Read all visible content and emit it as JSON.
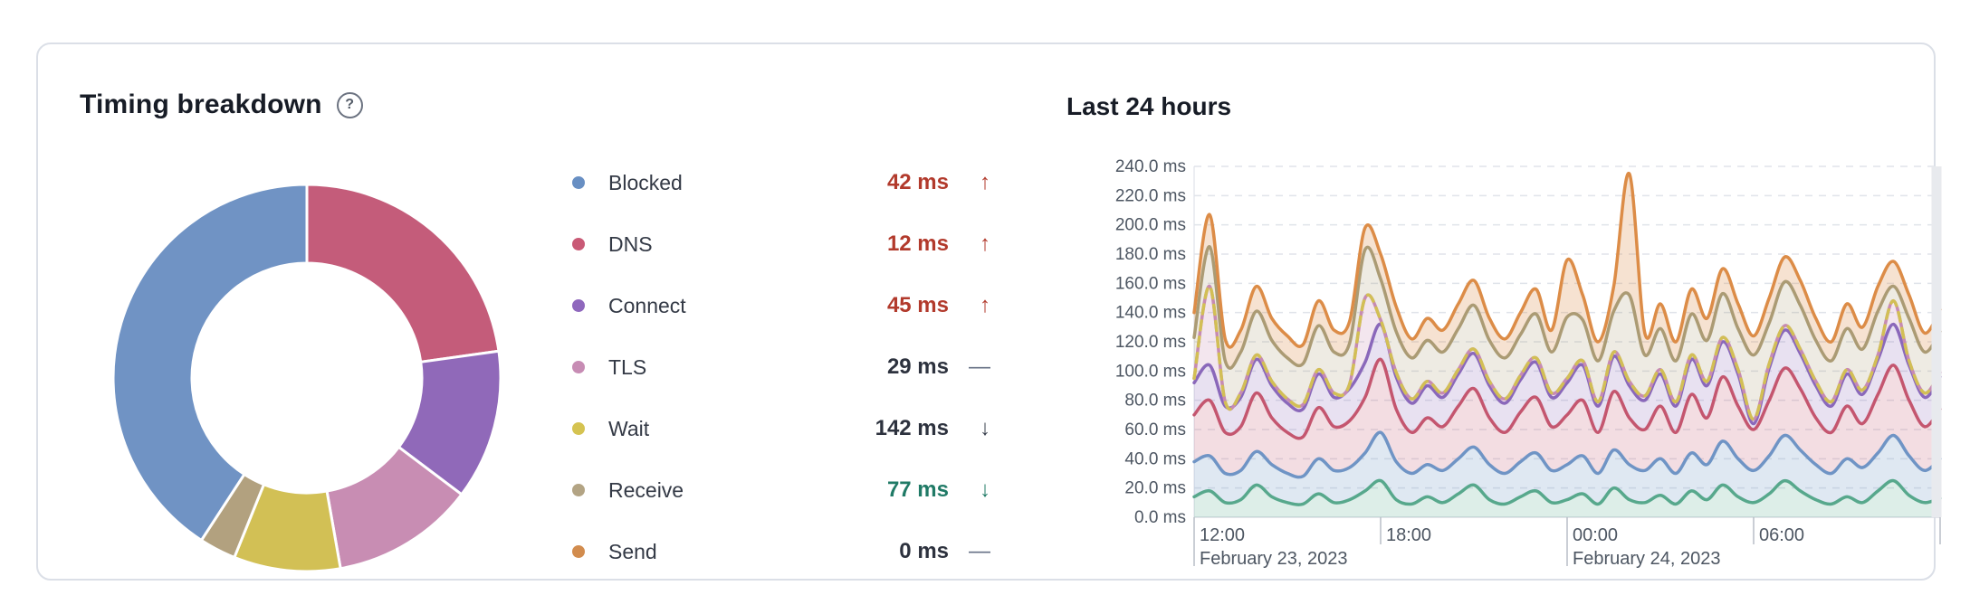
{
  "panel": {
    "title": "Timing breakdown",
    "help_glyph": "?",
    "legend": [
      {
        "label": "Blocked",
        "value": "42 ms",
        "trend_glyph": "↑",
        "dot_color": "#688fc3",
        "value_color": "#b23a2c",
        "glyph_color": "#b23a2c"
      },
      {
        "label": "DNS",
        "value": "12 ms",
        "trend_glyph": "↑",
        "dot_color": "#c95a76",
        "value_color": "#b23a2c",
        "glyph_color": "#b23a2c"
      },
      {
        "label": "Connect",
        "value": "45 ms",
        "trend_glyph": "↑",
        "dot_color": "#8f68bd",
        "value_color": "#b23a2c",
        "glyph_color": "#b23a2c"
      },
      {
        "label": "TLS",
        "value": "29 ms",
        "trend_glyph": "—",
        "dot_color": "#c78cb4",
        "value_color": "#2d323e",
        "glyph_color": "#667085"
      },
      {
        "label": "Wait",
        "value": "142 ms",
        "trend_glyph": "↓",
        "dot_color": "#d5c351",
        "value_color": "#2d323e",
        "glyph_color": "#39404d"
      },
      {
        "label": "Receive",
        "value": "77 ms",
        "trend_glyph": "↓",
        "dot_color": "#b3a484",
        "value_color": "#207a66",
        "glyph_color": "#207a66"
      },
      {
        "label": "Send",
        "value": "0 ms",
        "trend_glyph": "—",
        "dot_color": "#d28c4e",
        "value_color": "#2d323e",
        "glyph_color": "#667085"
      }
    ]
  },
  "chart": {
    "title": "Last 24 hours"
  },
  "chart_data": [
    {
      "type": "pie",
      "title": "Timing breakdown",
      "labels": [
        "Blocked",
        "DNS",
        "Connect",
        "TLS",
        "Wait",
        "Receive",
        "Send"
      ],
      "values_ms": [
        42,
        12,
        45,
        29,
        142,
        77,
        0
      ],
      "donut": true,
      "start": "top",
      "direction": "clockwise",
      "segments_rendered": [
        {
          "color": "#c45c7a",
          "from_deg": 0,
          "to_deg": 82
        },
        {
          "color": "#9069b9",
          "from_deg": 82,
          "to_deg": 127
        },
        {
          "color": "#c88db3",
          "from_deg": 127,
          "to_deg": 170
        },
        {
          "color": "#d2c055",
          "from_deg": 170,
          "to_deg": 202
        },
        {
          "color": "#b2a17f",
          "from_deg": 202,
          "to_deg": 213
        },
        {
          "color": "#7093c4",
          "from_deg": 213,
          "to_deg": 360
        }
      ]
    },
    {
      "type": "area",
      "title": "Last 24 hours",
      "stacked_tops": true,
      "x_hours": {
        "start_label": "12:00",
        "span_hours": 24,
        "points": 49
      },
      "x_ticks": [
        {
          "h": 0,
          "time": "12:00",
          "date": "February 23, 2023",
          "tall": true
        },
        {
          "h": 6,
          "time": "18:00",
          "tall": false
        },
        {
          "h": 12,
          "time": "00:00",
          "date": "February 24, 2023",
          "tall": true
        },
        {
          "h": 18,
          "time": "06:00",
          "tall": false
        },
        {
          "h": 24,
          "time": "",
          "tall": false
        }
      ],
      "y": {
        "min": 0,
        "max": 240,
        "step": 20,
        "unit": "ms"
      },
      "y_tick_labels": [
        "0.0 ms",
        "20.0 ms",
        "40.0 ms",
        "60.0 ms",
        "80.0 ms",
        "100.0 ms",
        "120.0 ms",
        "140.0 ms",
        "160.0 ms",
        "180.0 ms",
        "200.0 ms",
        "220.0 ms",
        "240.0 ms"
      ],
      "grid": {
        "dashed": true,
        "color": "#e0e4ea"
      },
      "now_strip_color": "#e8eaee",
      "series": [
        {
          "name": "teal",
          "line": "#57a88c",
          "fill": "rgba(87,168,140,0.20)",
          "values": [
            14,
            18,
            10,
            12,
            22,
            14,
            10,
            9,
            16,
            10,
            12,
            18,
            25,
            12,
            9,
            14,
            10,
            16,
            22,
            12,
            9,
            14,
            18,
            10,
            12,
            16,
            9,
            20,
            12,
            10,
            15,
            9,
            18,
            12,
            22,
            14,
            10,
            16,
            25,
            18,
            12,
            9,
            14,
            10,
            18,
            25,
            15,
            10,
            13
          ]
        },
        {
          "name": "blue",
          "line": "#6f94c5",
          "fill": "rgba(111,148,197,0.22)",
          "values": [
            38,
            42,
            30,
            32,
            45,
            36,
            30,
            28,
            40,
            32,
            34,
            44,
            58,
            38,
            30,
            36,
            32,
            40,
            48,
            36,
            30,
            38,
            44,
            32,
            36,
            42,
            30,
            46,
            36,
            32,
            40,
            30,
            44,
            36,
            52,
            40,
            32,
            42,
            56,
            46,
            36,
            30,
            40,
            34,
            44,
            56,
            42,
            32,
            40
          ]
        },
        {
          "name": "crimson",
          "line": "#c4566f",
          "fill": "rgba(196,86,111,0.20)",
          "values": [
            70,
            80,
            58,
            62,
            85,
            68,
            58,
            55,
            75,
            62,
            66,
            82,
            108,
            74,
            58,
            68,
            62,
            76,
            88,
            68,
            58,
            72,
            82,
            62,
            70,
            80,
            58,
            86,
            68,
            60,
            76,
            58,
            84,
            68,
            96,
            76,
            60,
            80,
            102,
            88,
            68,
            58,
            76,
            64,
            84,
            104,
            80,
            62,
            74
          ]
        },
        {
          "name": "purple",
          "line": "#8a68ba",
          "fill": "rgba(138,104,186,0.20)",
          "values": [
            92,
            104,
            76,
            82,
            108,
            90,
            78,
            74,
            98,
            82,
            88,
            106,
            132,
            96,
            78,
            90,
            82,
            98,
            112,
            90,
            78,
            94,
            106,
            82,
            92,
            104,
            76,
            110,
            90,
            80,
            98,
            76,
            108,
            90,
            120,
            98,
            64,
            102,
            128,
            112,
            90,
            76,
            98,
            84,
            108,
            132,
            104,
            82,
            96
          ]
        },
        {
          "name": "yellow-dashed",
          "line": "#d2bf55",
          "dash": "10 8",
          "underlay": "#c78bb2",
          "fill": "rgba(199,139,178,0.22)",
          "values": [
            95,
            158,
            79,
            85,
            111,
            93,
            81,
            77,
            101,
            85,
            91,
            150,
            135,
            99,
            81,
            93,
            85,
            101,
            115,
            93,
            81,
            97,
            109,
            85,
            95,
            107,
            79,
            113,
            93,
            83,
            101,
            79,
            111,
            93,
            123,
            101,
            67,
            105,
            131,
            115,
            93,
            79,
            101,
            87,
            111,
            148,
            107,
            85,
            99
          ]
        },
        {
          "name": "tan",
          "line": "#ab9b74",
          "fill": "rgba(171,155,116,0.20)",
          "values": [
            123,
            185,
            107,
            113,
            141,
            121,
            109,
            105,
            131,
            113,
            119,
            183,
            163,
            127,
            109,
            121,
            113,
            129,
            145,
            121,
            109,
            125,
            139,
            113,
            137,
            135,
            107,
            141,
            152,
            111,
            129,
            107,
            139,
            121,
            153,
            129,
            111,
            133,
            161,
            145,
            121,
            107,
            129,
            115,
            141,
            158,
            136,
            113,
            127
          ]
        },
        {
          "name": "orange",
          "line": "#dc8c47",
          "fill": "rgba(220,140,71,0.25)",
          "values": [
            140,
            207,
            122,
            128,
            158,
            136,
            124,
            118,
            148,
            128,
            134,
            198,
            180,
            144,
            122,
            136,
            128,
            146,
            162,
            136,
            122,
            140,
            156,
            128,
            176,
            152,
            120,
            158,
            235,
            126,
            146,
            120,
            156,
            136,
            170,
            146,
            124,
            150,
            178,
            162,
            136,
            120,
            146,
            130,
            158,
            175,
            152,
            126,
            142
          ]
        }
      ]
    }
  ]
}
